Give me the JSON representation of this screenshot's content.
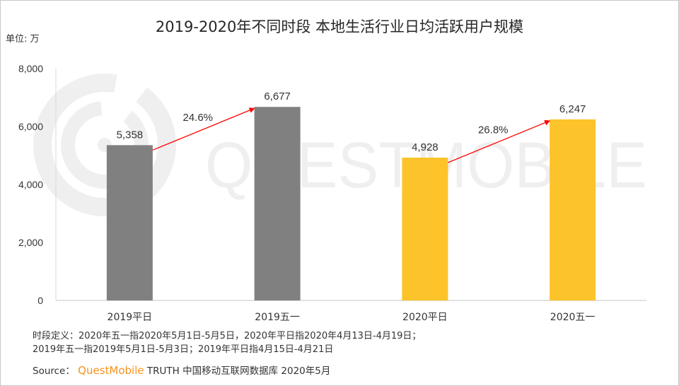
{
  "title": "2019-2020年不同时段 本地生活行业日均活跃用户规模",
  "unit_label": "单位: 万",
  "watermark": "QUESTMOBILE",
  "notes": [
    "时段定义：2020年五一指2020年5月1日-5月5日，2020年平日指2020年4月13日-4月19日；",
    "2019年五一指2019年5月1日-5月3日；2019年平日指4月15日-4月21日"
  ],
  "source": {
    "prefix": "Source：",
    "brand": "QuestMobile",
    "rest": "TRUTH 中国移动互联网数据库 2020年5月"
  },
  "colors": {
    "gray_bar": "#808080",
    "yellow_bar": "#fdc32b",
    "arrow": "#ff0000",
    "brand": "#f7931e"
  },
  "chart_data": {
    "type": "bar",
    "title": "2019-2020年不同时段 本地生活行业日均活跃用户规模",
    "xlabel": "",
    "ylabel": "单位: 万",
    "ylim": [
      0,
      8000
    ],
    "yticks": [
      0,
      2000,
      4000,
      6000,
      8000
    ],
    "ytick_labels": [
      "0",
      "2,000",
      "4,000",
      "6,000",
      "8,000"
    ],
    "grid": false,
    "categories": [
      "2019平日",
      "2019五一",
      "2020平日",
      "2020五一"
    ],
    "values": [
      5358,
      6677,
      4928,
      6247
    ],
    "data_labels": [
      "5,358",
      "6,677",
      "4,928",
      "6,247"
    ],
    "bar_colors": [
      "#808080",
      "#808080",
      "#fdc32b",
      "#fdc32b"
    ],
    "annotations": [
      {
        "from": "2019平日",
        "to": "2019五一",
        "label": "24.6%",
        "type": "arrow"
      },
      {
        "from": "2020平日",
        "to": "2020五一",
        "label": "26.8%",
        "type": "arrow"
      }
    ]
  }
}
